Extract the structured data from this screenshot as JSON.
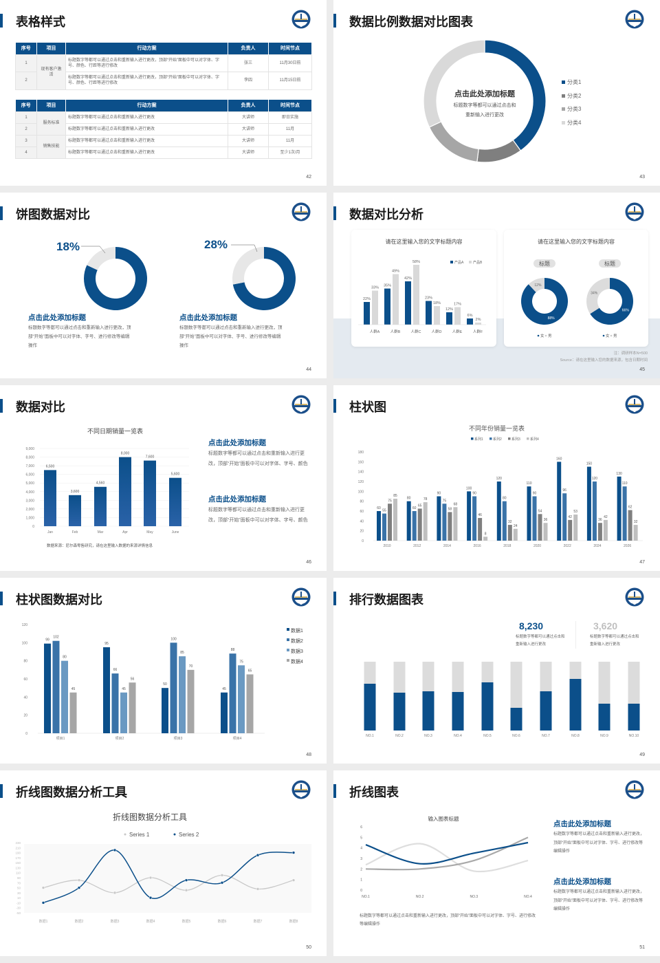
{
  "colors": {
    "primary": "#0b4f8a",
    "series2": "#3a73a8",
    "series3": "#6a99c2",
    "gray_dark": "#7f7f7f",
    "gray_mid": "#a6a6a6",
    "gray_light": "#d9d9d9",
    "background": "#ececec"
  },
  "logo_icon": "university-emblem-icon",
  "slides": [
    {
      "page": "42",
      "title": "表格样式",
      "table1": {
        "headers": [
          "序号",
          "项目",
          "行动方案",
          "负责人",
          "时间节点"
        ],
        "rows": [
          {
            "no": "1",
            "item": "现有客户激活",
            "plan": "标题数字等都可以通过点击和重新输入进行更改，顶部“开始”面板中可以对字体、字号、颜色、行距等进行修改",
            "owner": "张三",
            "time": "11月30日前"
          },
          {
            "no": "2",
            "plan": "标题数字等都可以通过点击和重新输入进行更改，顶部“开始”面板中可以对字体、字号、颜色、行距等进行修改",
            "owner": "李四",
            "time": "11月15日前"
          }
        ]
      },
      "table2": {
        "headers": [
          "序号",
          "项目",
          "行动方案",
          "负责人",
          "时间节点"
        ],
        "rows": [
          {
            "no": "1",
            "item": "服务标准",
            "plan": "标题数字等都可以通过点击和重新输入进行更改",
            "owner": "大讲师",
            "time": "即日实施"
          },
          {
            "no": "2",
            "plan": "标题数字等都可以通过点击和重新输入进行更改",
            "owner": "大讲师",
            "time": "11月"
          },
          {
            "no": "3",
            "item": "销售技能",
            "plan": "标题数字等都可以通过点击和重新输入进行更改",
            "owner": "大讲师",
            "time": "11月"
          },
          {
            "no": "4",
            "plan": "标题数字等都可以通过点击和重新输入进行更改",
            "owner": "大讲师",
            "time": "至少1次/月"
          }
        ]
      }
    },
    {
      "page": "43",
      "title": "数据比例数据对比图表",
      "center_title": "点击此处添加标题",
      "center_lines": [
        "标题数字等都可以通过点击和",
        "重新输入进行更改"
      ]
    },
    {
      "page": "44",
      "title": "饼图数据对比",
      "blocks": [
        {
          "heading": "点击此处添加标题",
          "text": "标题数字等都可以通过点击和重新输入进行更改，顶部“开始”面板中可以对字体、字号、进行修改等编辑操作"
        },
        {
          "heading": "点击此处添加标题",
          "text": "标题数字等都可以通过点击和重新输入进行更改，顶部“开始”面板中可以对字体、字号、进行修改等编辑操作"
        }
      ]
    },
    {
      "page": "45",
      "title": "数据对比分析",
      "card1_title": "请在这里输入您的文字标题内容",
      "card2_title": "请在这里输入您的文字标题内容",
      "pills": [
        "标题",
        "标题"
      ],
      "note": "注：调研样本N=500",
      "source": "Source：请在这里输入您的数据来源，包含日期时间"
    },
    {
      "page": "46",
      "title": "数据对比",
      "footnote": "数据来源：尼尔森零售研究，请在这里输入数据的来源详情信息",
      "blocks": [
        {
          "heading": "点击此处添加标题",
          "text": "标题数字等都可以通过点击和重新输入进行更改，顶部“开始”面板中可以对字体、字号、颜色"
        },
        {
          "heading": "点击此处添加标题",
          "text": "标题数字等都可以通过点击和重新输入进行更改，顶部“开始”面板中可以对字体、字号、颜色"
        }
      ]
    },
    {
      "page": "47",
      "title": "柱状图"
    },
    {
      "page": "48",
      "title": "柱状图数据对比"
    },
    {
      "page": "49",
      "title": "排行数据图表",
      "stats": [
        {
          "value": "8,230",
          "text": "标题数字等都可以通过点击和重新输入进行更改"
        },
        {
          "value": "3,620",
          "text": "标题数字等都可以通过点击和重新输入进行更改"
        }
      ]
    },
    {
      "page": "50",
      "title": "折线图数据分析工具"
    },
    {
      "page": "51",
      "title": "折线图表",
      "bottom_text": "标题数字等都可以通过点击和重新输入进行更改，顶部“开始”面板中可以对字体、字号、进行修改等编辑操作",
      "blocks": [
        {
          "heading": "点击此处添加标题",
          "text": "标题数字等都可以通过点击和重新输入进行更改，顶部“开始”面板中可以对字体、字号、进行修改等编辑操作"
        },
        {
          "heading": "点击此处添加标题",
          "text": "标题数字等都可以通过点击和重新输入进行更改，顶部“开始”面板中可以对字体、字号、进行修改等编辑操作"
        }
      ]
    }
  ],
  "chart_data": [
    {
      "type": "pie",
      "categories": [
        "分类1",
        "分类2",
        "分类3",
        "分类4"
      ],
      "values": [
        40,
        12,
        16,
        32
      ],
      "legend": "right"
    },
    {
      "type": "pie",
      "label": "18%",
      "values": [
        82,
        18
      ]
    },
    {
      "type": "pie",
      "label": "28%",
      "values": [
        72,
        28
      ]
    },
    {
      "type": "bar",
      "title": "请在这里输入您的文字标题内容",
      "categories": [
        "人群A",
        "人群B",
        "人群C",
        "人群D",
        "人群E",
        "人群F"
      ],
      "series": [
        {
          "name": "产品A",
          "values": [
            22,
            35,
            42,
            23,
            12,
            6
          ]
        },
        {
          "name": "产品B",
          "values": [
            33,
            49,
            58,
            18,
            17,
            2
          ]
        }
      ],
      "unit": "%",
      "legend": "top-right"
    },
    {
      "type": "pie",
      "categories": [
        "女",
        "男"
      ],
      "values": [
        88,
        12
      ],
      "labels": [
        "88%",
        "12%"
      ]
    },
    {
      "type": "pie",
      "categories": [
        "女",
        "男"
      ],
      "values": [
        66,
        34
      ],
      "labels": [
        "66%",
        "34%"
      ]
    },
    {
      "type": "bar",
      "title": "不同日期销量一览表",
      "categories": [
        "Jan",
        "Feb",
        "Mar",
        "Apr",
        "May",
        "June"
      ],
      "values": [
        6500,
        3600,
        4560,
        8000,
        7600,
        5600
      ],
      "labels": [
        "6,500",
        "3,600",
        "4,560",
        "8,000",
        "7,600",
        "5,600"
      ],
      "ylim": [
        0,
        9000
      ],
      "yticks": [
        "0",
        "1,000",
        "2,000",
        "3,000",
        "4,000",
        "5,000",
        "6,000",
        "7,000",
        "8,000",
        "9,000"
      ],
      "grid": true
    },
    {
      "type": "bar",
      "title": "不同年份销量一览表",
      "categories": [
        "2010",
        "2012",
        "2014",
        "2016",
        "2018",
        "2020",
        "2022",
        "2024",
        "2026"
      ],
      "series": [
        {
          "name": "系列1",
          "values": [
            60,
            80,
            90,
            100,
            120,
            110,
            160,
            150,
            130
          ]
        },
        {
          "name": "系列2",
          "values": [
            55,
            60,
            75,
            90,
            80,
            90,
            96,
            120,
            110
          ]
        },
        {
          "name": "系列3",
          "values": [
            75,
            65,
            58,
            46,
            32,
            54,
            42,
            36,
            62
          ]
        },
        {
          "name": "系列4",
          "values": [
            85,
            78,
            68,
            8,
            24,
            36,
            53,
            42,
            32
          ]
        }
      ],
      "ylim": [
        0,
        180
      ],
      "yticks": [
        "0",
        "20",
        "40",
        "60",
        "80",
        "100",
        "120",
        "140",
        "160",
        "180"
      ],
      "legend": "top"
    },
    {
      "type": "bar",
      "categories": [
        "项目1",
        "项目2",
        "项目3",
        "项目4"
      ],
      "series": [
        {
          "name": "数据1",
          "values": [
            99,
            95,
            50,
            45
          ]
        },
        {
          "name": "数据2",
          "values": [
            102,
            66,
            100,
            88
          ]
        },
        {
          "name": "数据3",
          "values": [
            80,
            45,
            85,
            75
          ]
        },
        {
          "name": "数据4",
          "values": [
            45,
            56,
            70,
            65
          ]
        }
      ],
      "ylim": [
        0,
        120
      ],
      "yticks": [
        "0",
        "20",
        "40",
        "60",
        "80",
        "100",
        "120"
      ],
      "legend": "right"
    },
    {
      "type": "bar",
      "stacked": true,
      "categories": [
        "NO.1",
        "NO.2",
        "NO.3",
        "NO.4",
        "NO.5",
        "NO.6",
        "NO.7",
        "NO.8",
        "NO.9",
        "NO.10"
      ],
      "values": [
        0.68,
        0.55,
        0.57,
        0.56,
        0.7,
        0.33,
        0.57,
        0.75,
        0.39,
        0.39
      ]
    },
    {
      "type": "line",
      "title": "折线图数据分析工具",
      "categories": [
        "数据1",
        "数据2",
        "数据3",
        "数据4",
        "数据5",
        "数据6",
        "数据7",
        "数据8"
      ],
      "series": [
        {
          "name": "Series 1",
          "values": [
            50,
            80,
            30,
            90,
            40,
            100,
            45,
            80
          ]
        },
        {
          "name": "Series 2",
          "values": [
            -10,
            50,
            200,
            10,
            80,
            70,
            180,
            190
          ]
        }
      ],
      "ylim": [
        -50,
        230
      ],
      "yticks": [
        "230",
        "210",
        "190",
        "170",
        "150",
        "130",
        "110",
        "90",
        "70",
        "50",
        "30",
        "10",
        "-10",
        "-30",
        "-50"
      ],
      "legend": "top"
    },
    {
      "type": "line",
      "title": "输入图表标题",
      "categories": [
        "NO.1",
        "NO.2",
        "NO.3",
        "NO.4"
      ],
      "series": [
        {
          "values": [
            4.3,
            2.5,
            3.5,
            4.5
          ]
        },
        {
          "values": [
            2.4,
            4.4,
            1.8,
            2.8
          ]
        },
        {
          "values": [
            2.0,
            2.0,
            2.8,
            5.0
          ]
        }
      ],
      "ylim": [
        0,
        6
      ],
      "yticks": [
        "0",
        "1",
        "2",
        "3",
        "4",
        "5",
        "6"
      ]
    }
  ]
}
